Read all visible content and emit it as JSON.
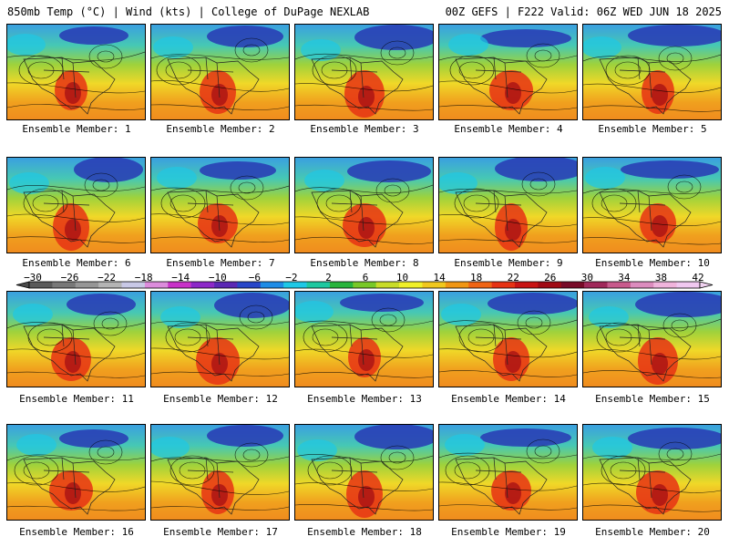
{
  "header": {
    "left": "850mb Temp (°C) | Wind (kts) | College of DuPage NEXLAB",
    "right": "00Z GEFS | F222 Valid: 06Z WED JUN 18 2025"
  },
  "member_caption_prefix": "Ensemble Member: ",
  "members": [
    "1",
    "2",
    "3",
    "4",
    "5",
    "6",
    "7",
    "8",
    "9",
    "10",
    "11",
    "12",
    "13",
    "14",
    "15",
    "16",
    "17",
    "18",
    "19",
    "20"
  ],
  "colorbar": {
    "ticks": [
      "−30",
      "−26",
      "−22",
      "−18",
      "−14",
      "−10",
      "−6",
      "−2",
      "2",
      "6",
      "10",
      "14",
      "18",
      "22",
      "26",
      "30",
      "34",
      "38",
      "42"
    ],
    "colors": [
      "#5a5a5a",
      "#787878",
      "#969696",
      "#b4b4b4",
      "#c8c8e6",
      "#dc8cdc",
      "#c832c8",
      "#8c28c8",
      "#5a28b4",
      "#2846c8",
      "#1e8ce6",
      "#1ec8e6",
      "#1ec8a0",
      "#28b43c",
      "#78c828",
      "#c8dc28",
      "#f0f028",
      "#f0c81e",
      "#f09614",
      "#f06414",
      "#e63214",
      "#c81414",
      "#a00a14",
      "#780a28",
      "#a0285a",
      "#c85a8c",
      "#dc8cbe",
      "#f0b4dc",
      "#f0c8f0"
    ]
  }
}
